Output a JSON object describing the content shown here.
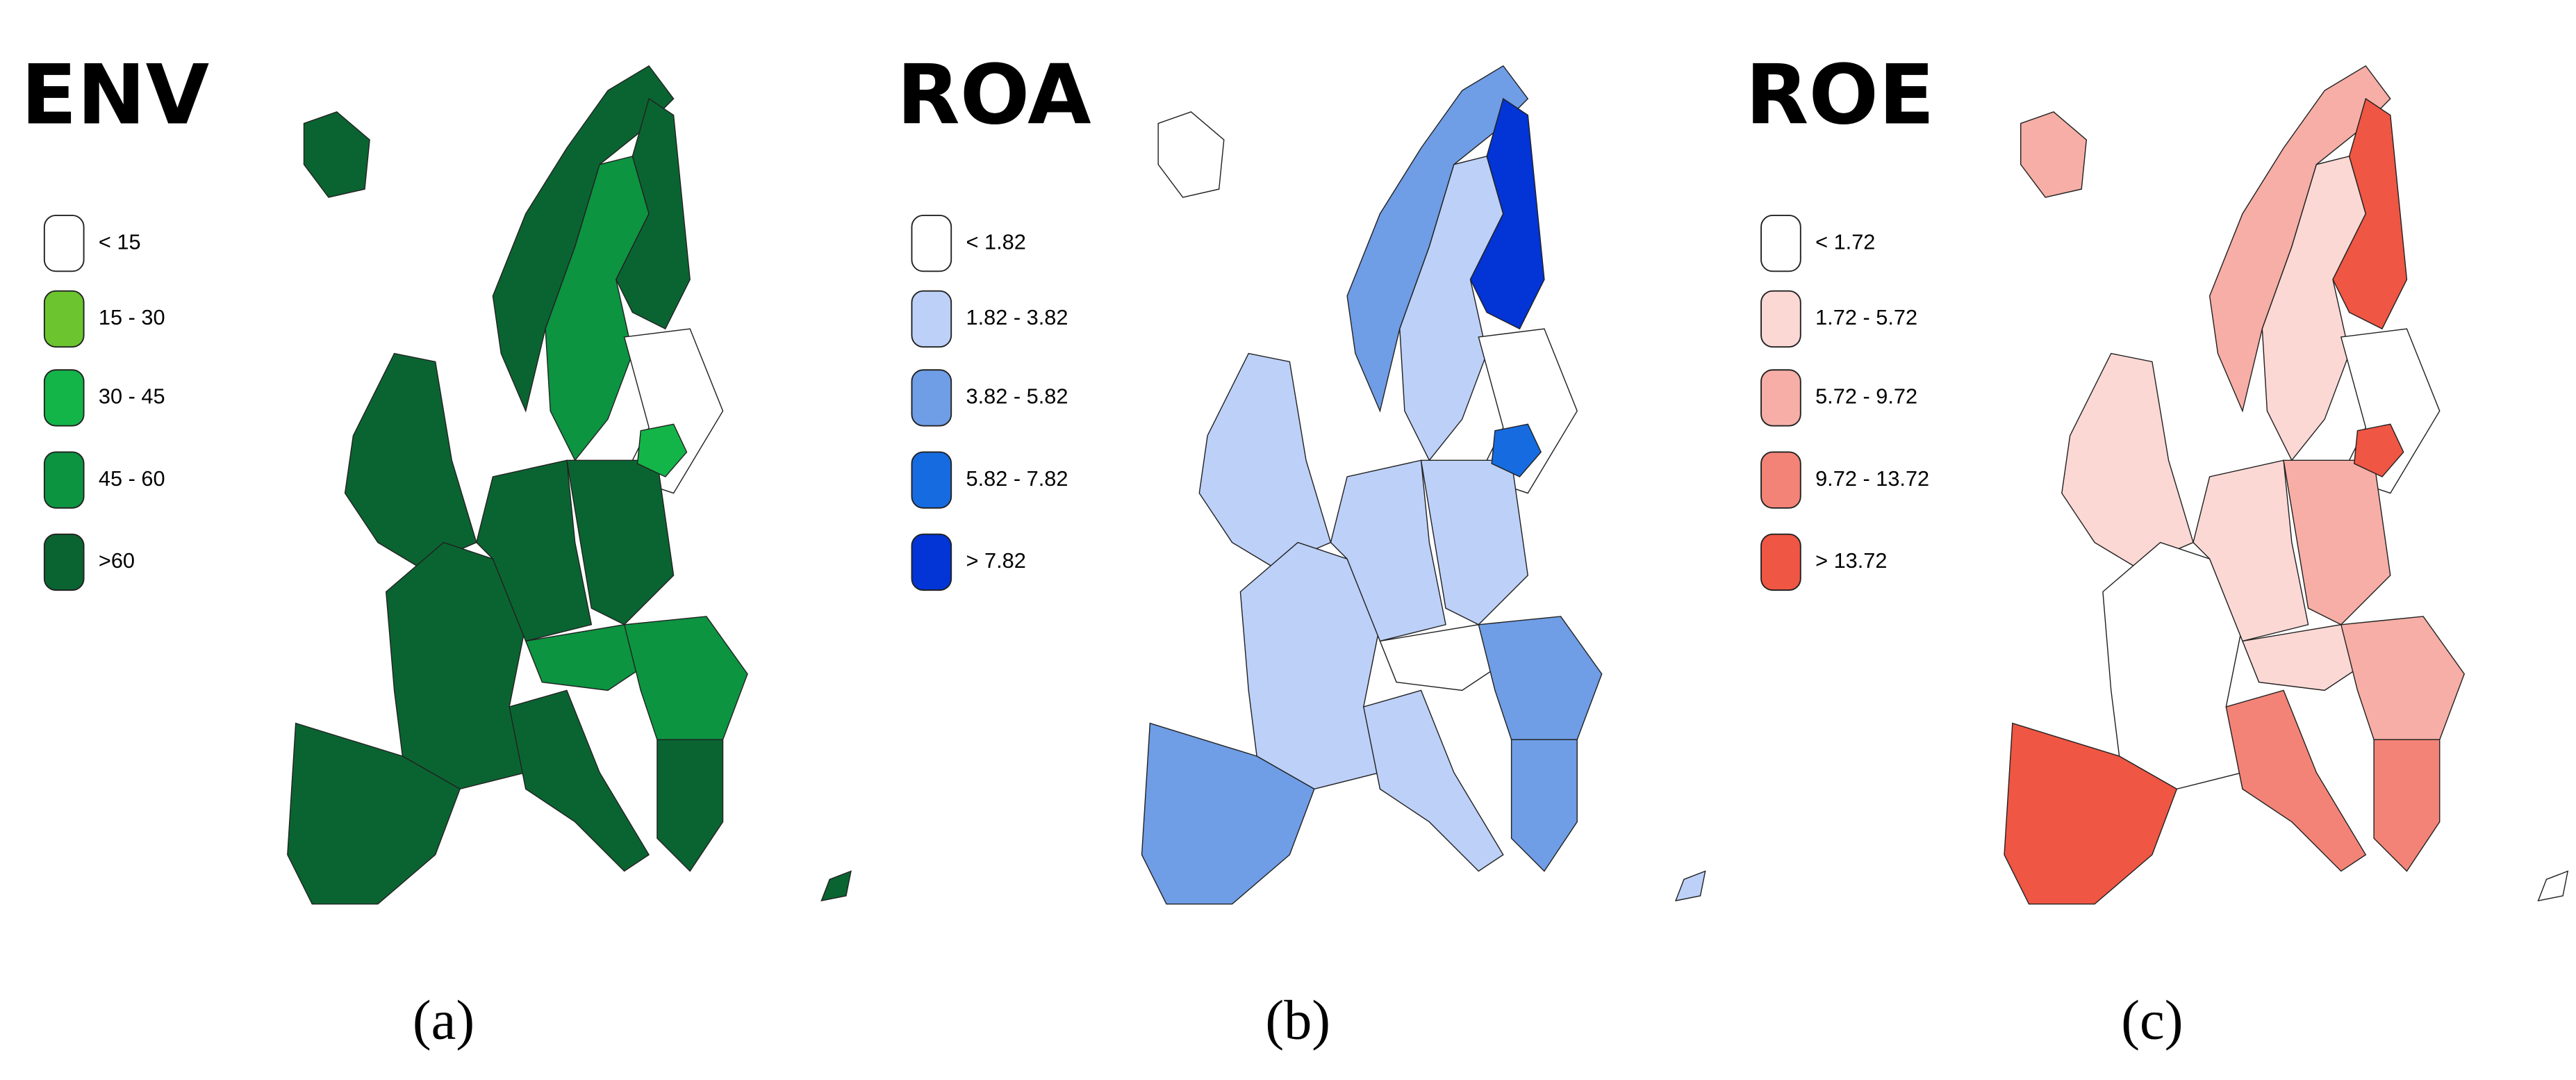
{
  "panels": [
    {
      "title": "ENV",
      "caption": "(a)",
      "legend": [
        {
          "label": "< 15",
          "color": "#ffffff"
        },
        {
          "label": "15 - 30",
          "color": "#6cc52e"
        },
        {
          "label": "30 - 45",
          "color": "#13b548"
        },
        {
          "label": "45 - 60",
          "color": "#0c9441"
        },
        {
          "label": ">60",
          "color": "#0a6431"
        }
      ]
    },
    {
      "title": "ROA",
      "caption": "(b)",
      "legend": [
        {
          "label": "< 1.82",
          "color": "#ffffff"
        },
        {
          "label": "1.82 - 3.82",
          "color": "#bdd0f8"
        },
        {
          "label": "3.82 - 5.82",
          "color": "#6f9de6"
        },
        {
          "label": "5.82 - 7.82",
          "color": "#166be0"
        },
        {
          "label": "> 7.82",
          "color": "#0234d6"
        }
      ]
    },
    {
      "title": "ROE",
      "caption": "(c)",
      "legend": [
        {
          "label": "< 1.72",
          "color": "#ffffff"
        },
        {
          "label": "1.72 - 5.72",
          "color": "#fbd8d4"
        },
        {
          "label": "5.72 - 9.72",
          "color": "#f6aea6"
        },
        {
          "label": "9.72 - 13.72",
          "color": "#f48377"
        },
        {
          "label": "> 13.72",
          "color": "#ef5643"
        }
      ]
    }
  ]
}
